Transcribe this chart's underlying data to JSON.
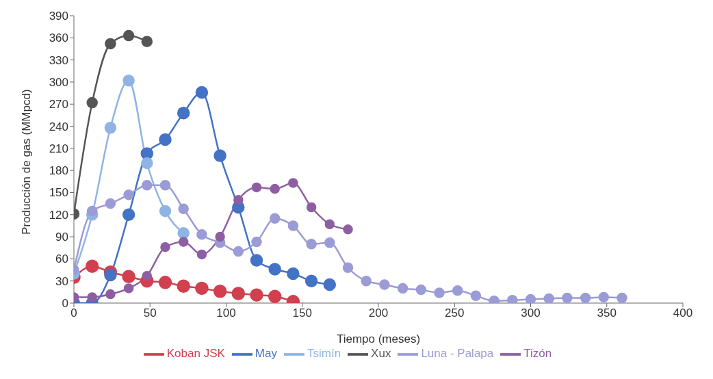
{
  "chart_data": {
    "type": "line",
    "xlabel": "Tiempo (meses)",
    "ylabel": "Producción de gas (MMpcd)",
    "xlim": [
      0,
      400
    ],
    "xticks": [
      0,
      50,
      100,
      150,
      200,
      250,
      300,
      350,
      400
    ],
    "ylim": [
      0,
      390
    ],
    "yticks": [
      0,
      30,
      60,
      90,
      120,
      150,
      180,
      210,
      240,
      270,
      300,
      330,
      360,
      390
    ],
    "grid": false,
    "legend": "bottom",
    "marker": "circle",
    "line_style": "solid",
    "series": [
      {
        "name": "Koban JSK",
        "color": "#d0404f",
        "x": [
          0,
          12,
          24,
          36,
          48,
          60,
          72,
          84,
          96,
          108,
          120,
          132,
          144
        ],
        "values": [
          35,
          50,
          42,
          36,
          30,
          28,
          23,
          20,
          16,
          13,
          11,
          9,
          2
        ]
      },
      {
        "name": "May",
        "color": "#4472c4",
        "x": [
          0,
          12,
          24,
          36,
          48,
          60,
          72,
          84,
          96,
          108,
          120,
          132,
          144,
          156,
          168
        ],
        "values": [
          0,
          0,
          38,
          120,
          203,
          222,
          258,
          286,
          200,
          130,
          58,
          46,
          40,
          30,
          25
        ]
      },
      {
        "name": "Tsimín",
        "color": "#8fb4e3",
        "x": [
          0,
          12,
          24,
          36,
          48,
          60,
          72
        ],
        "values": [
          40,
          120,
          238,
          302,
          190,
          125,
          95
        ]
      },
      {
        "name": "Xux",
        "color": "#555555",
        "x": [
          0,
          12,
          24,
          36,
          48
        ],
        "values": [
          121,
          272,
          352,
          363,
          355
        ]
      },
      {
        "name": "Luna - Palapa",
        "color": "#9b9bd6",
        "x": [
          0,
          12,
          24,
          36,
          48,
          60,
          72,
          84,
          96,
          108,
          120,
          132,
          144,
          156,
          168,
          180,
          192,
          204,
          216,
          228,
          240,
          252,
          264,
          276,
          288,
          300,
          312,
          324,
          336,
          348,
          360
        ],
        "values": [
          45,
          125,
          135,
          147,
          160,
          160,
          128,
          93,
          82,
          70,
          83,
          115,
          105,
          80,
          82,
          48,
          30,
          25,
          20,
          18,
          14,
          17,
          10,
          3,
          4,
          5,
          6,
          7,
          7,
          8,
          7
        ]
      },
      {
        "name": "Tizón",
        "color": "#8e5ea2",
        "x": [
          0,
          12,
          24,
          36,
          48,
          60,
          72,
          84,
          96,
          108,
          120,
          132,
          144,
          156,
          168,
          180
        ],
        "values": [
          8,
          8,
          12,
          20,
          37,
          76,
          83,
          66,
          90,
          140,
          157,
          155,
          163,
          130,
          107,
          100
        ]
      }
    ]
  }
}
